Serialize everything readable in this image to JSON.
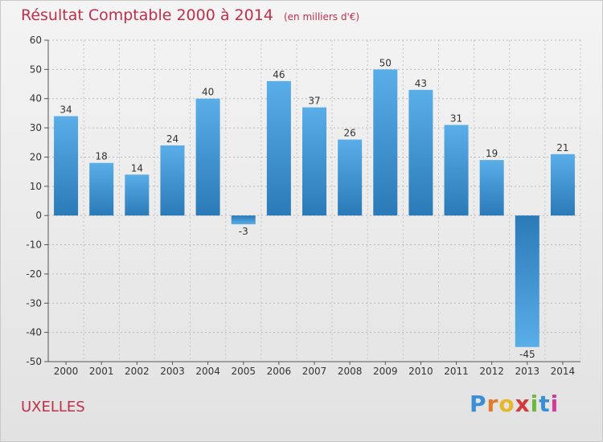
{
  "title": "Résultat Comptable 2000 à 2014",
  "subtitle": "(en milliers d'€)",
  "commune": "UXELLES",
  "logo": [
    "P",
    "r",
    "o",
    "x",
    "i",
    "t",
    "i"
  ],
  "colors": {
    "title": "#c0304a",
    "bar_light": "#5aaee8",
    "bar_dark": "#2a7ab8",
    "logo": [
      "#3a8fd4",
      "#e27a2a",
      "#e8b62a",
      "#d43a3a",
      "#6cb83a",
      "#3a8fd4",
      "#d43a9a"
    ]
  },
  "chart_data": {
    "type": "bar",
    "title": "Résultat Comptable 2000 à 2014",
    "xlabel": "",
    "ylabel": "",
    "ylim": [
      -50,
      60
    ],
    "yticks": [
      "60",
      "50",
      "40",
      "30",
      "20",
      "10",
      "0",
      "-10",
      "-20",
      "-30",
      "-40",
      "-50"
    ],
    "ytick_values": [
      60,
      50,
      40,
      30,
      20,
      10,
      0,
      -10,
      -20,
      -30,
      -40,
      -50
    ],
    "grid": "horizontal dashed",
    "categories": [
      "2000",
      "2001",
      "2002",
      "2003",
      "2004",
      "2005",
      "2006",
      "2007",
      "2008",
      "2009",
      "2010",
      "2011",
      "2012",
      "2013",
      "2014"
    ],
    "values": [
      34,
      18,
      14,
      24,
      40,
      -3,
      46,
      37,
      26,
      50,
      43,
      31,
      19,
      -45,
      21
    ],
    "value_labels": [
      "34",
      "18",
      "14",
      "24",
      "40",
      "-3",
      "46",
      "37",
      "26",
      "50",
      "43",
      "31",
      "19",
      "-45",
      "21"
    ]
  }
}
